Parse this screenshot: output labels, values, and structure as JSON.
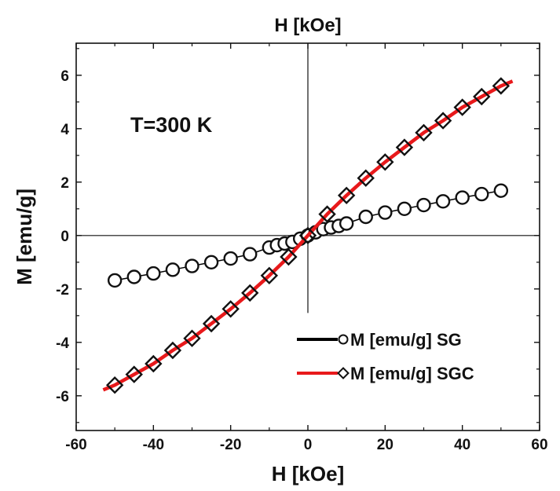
{
  "chart_data": {
    "type": "scatter",
    "title": "",
    "top_axis_label": "H [kOe]",
    "xlabel": "H [kOe]",
    "ylabel": "M [emu/g]",
    "xlim": [
      -60,
      60
    ],
    "ylim": [
      -7.3,
      7.2
    ],
    "x_ticks": [
      -60,
      -40,
      -20,
      0,
      20,
      40,
      60
    ],
    "y_ticks": [
      -6,
      -4,
      -2,
      0,
      2,
      4,
      6
    ],
    "grid": false,
    "legend_position": "bottom-right",
    "annotation": "T=300 K",
    "series": [
      {
        "name": "M [emu/g] SG",
        "color": "#000000",
        "marker": "circle",
        "x": [
          -50,
          -45,
          -40,
          -35,
          -30,
          -25,
          -20,
          -15,
          -10,
          -8,
          -6,
          -4,
          -2,
          0,
          2,
          4,
          6,
          8,
          10,
          15,
          20,
          25,
          30,
          35,
          40,
          45,
          50
        ],
        "y": [
          -1.68,
          -1.55,
          -1.42,
          -1.28,
          -1.14,
          -1.0,
          -0.86,
          -0.7,
          -0.45,
          -0.36,
          -0.3,
          -0.24,
          -0.12,
          0.0,
          0.12,
          0.24,
          0.3,
          0.36,
          0.45,
          0.7,
          0.86,
          1.0,
          1.14,
          1.28,
          1.42,
          1.55,
          1.68
        ]
      },
      {
        "name": "M [emu/g] SGC",
        "color": "#e8191b",
        "marker": "diamond",
        "x": [
          -50,
          -45,
          -40,
          -35,
          -30,
          -25,
          -20,
          -15,
          -10,
          -5,
          0,
          5,
          10,
          15,
          20,
          25,
          30,
          35,
          40,
          45,
          50
        ],
        "y": [
          -5.6,
          -5.2,
          -4.8,
          -4.3,
          -3.85,
          -3.3,
          -2.75,
          -2.15,
          -1.5,
          -0.8,
          0.0,
          0.8,
          1.5,
          2.15,
          2.75,
          3.3,
          3.85,
          4.3,
          4.8,
          5.2,
          5.6
        ]
      }
    ]
  }
}
